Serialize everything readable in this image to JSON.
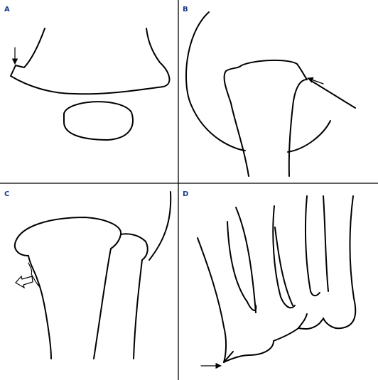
{
  "figure": {
    "label_color": "#1a3a8a",
    "line_color": "#000000",
    "divider_color": "#000000",
    "panels": [
      {
        "id": "A",
        "label": "A"
      },
      {
        "id": "B",
        "label": "B"
      },
      {
        "id": "C",
        "label": "C"
      },
      {
        "id": "D",
        "label": "D"
      }
    ]
  }
}
